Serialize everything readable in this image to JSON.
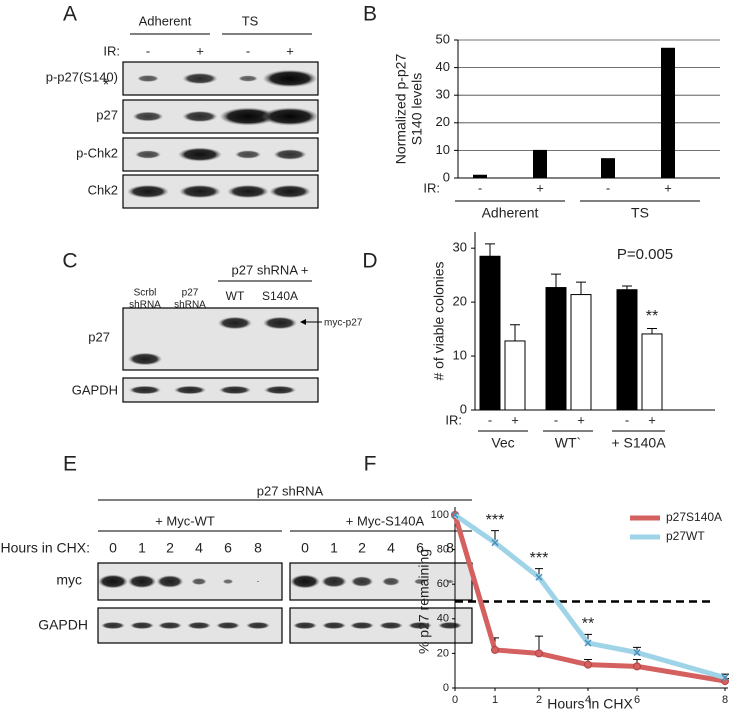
{
  "figure": {
    "letters": [
      "A",
      "B",
      "C",
      "D",
      "E",
      "F"
    ],
    "panel_a": {
      "groups": [
        "Adherent",
        "TS"
      ],
      "ir_label": "IR:",
      "ir": [
        "-",
        "+",
        "-",
        "+"
      ],
      "rows": [
        "p-p27(S140)",
        "p27",
        "p-Chk2",
        "Chk2"
      ],
      "asterisk": "*"
    },
    "panel_c": {
      "header": "p27 shRNA +",
      "lanes": [
        [
          "Scrbl",
          "shRNA"
        ],
        [
          "p27",
          "shRNA"
        ],
        [
          "WT"
        ],
        [
          "S140A"
        ]
      ],
      "rows": [
        "p27",
        "GAPDH"
      ],
      "arrow_label": "myc-p27"
    },
    "panel_e": {
      "header": "p27 shRNA",
      "groups": [
        "+ Myc-WT",
        "+ Myc-S140A"
      ],
      "hours_label": "Hours in CHX:",
      "hours": [
        "0",
        "1",
        "2",
        "4",
        "6",
        "8"
      ],
      "rows": [
        "myc",
        "GAPDH"
      ]
    }
  },
  "chart_data": [
    {
      "type": "bar",
      "y_label": [
        "Normalized p-p27",
        "S140 levels"
      ],
      "ir_label": "IR:",
      "categories": [
        "-",
        "+",
        "-",
        "+"
      ],
      "groups": [
        "Adherent",
        "TS"
      ],
      "values": [
        1,
        10,
        7,
        47
      ],
      "color": "#000000",
      "ylim": [
        0,
        50
      ],
      "yticks": [
        0,
        10,
        20,
        30,
        40,
        50
      ],
      "grid": true
    },
    {
      "type": "bar",
      "y_label": "# of viable colonies",
      "ir_label": "IR:",
      "categories": [
        "-",
        "+",
        "-",
        "+",
        "-",
        "+"
      ],
      "groups": [
        "Vec",
        "WT`",
        "+ S140A"
      ],
      "values": [
        28.5,
        12.8,
        22.7,
        21.4,
        22.3,
        14.1
      ],
      "errors": [
        2.3,
        3.0,
        2.5,
        2.3,
        0.7,
        1.0
      ],
      "colors": [
        "#000000",
        "#ffffff",
        "#000000",
        "#ffffff",
        "#000000",
        "#ffffff"
      ],
      "annotation": "P=0.005",
      "significance": {
        "x": 5,
        "label": "**"
      },
      "ylim": [
        0,
        33
      ],
      "yticks": [
        0,
        10,
        20,
        30
      ],
      "grid": false
    },
    {
      "type": "line",
      "x_label": "Hours in CHX",
      "y_label": "% p27 remaining",
      "categories": [
        "0",
        "1",
        "2",
        "4",
        "6",
        "8"
      ],
      "series": [
        {
          "name": "p27S140A",
          "color": "#d46060",
          "marker": "circle",
          "values": [
            100,
            22,
            20,
            13.5,
            12.5,
            4
          ],
          "errors": [
            0,
            7,
            10,
            3,
            4,
            1.5
          ]
        },
        {
          "name": "p27WT",
          "color": "#9fd4e8",
          "marker": "x",
          "values": [
            100,
            84,
            64,
            26,
            20.5,
            6
          ],
          "errors": [
            0,
            7,
            5,
            5,
            3,
            2
          ]
        }
      ],
      "reference_line": 50,
      "annotations": [
        {
          "x": "1",
          "label": "***"
        },
        {
          "x": "2",
          "label": "***"
        },
        {
          "x": "4",
          "label": "**"
        }
      ],
      "ylim": [
        0,
        100
      ],
      "yticks": [
        0,
        20,
        40,
        60,
        80,
        100
      ],
      "legend": "upper right",
      "grid": false
    }
  ]
}
